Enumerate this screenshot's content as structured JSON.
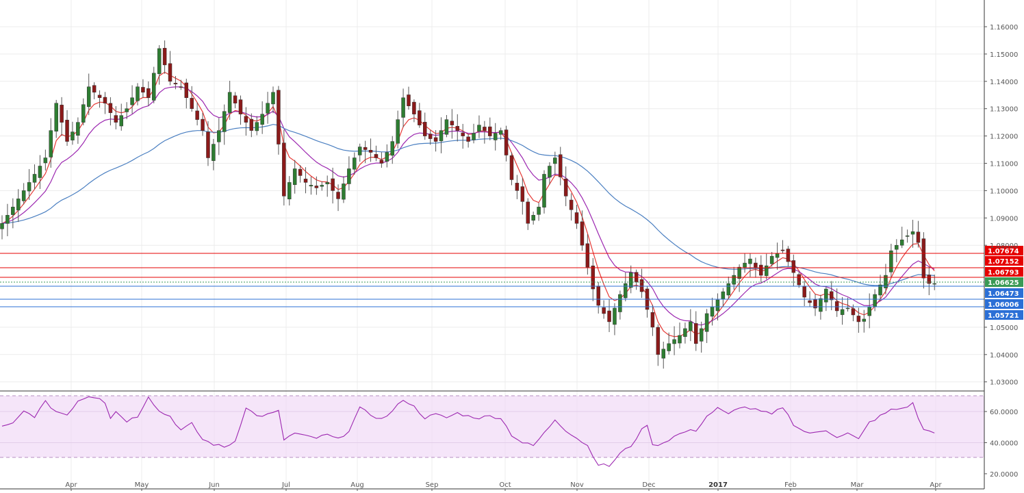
{
  "chart_data": [
    {
      "type": "candlestick",
      "instrument_scale": "price",
      "ylim": [
        1.025,
        1.165
      ],
      "yticks": [
        "1.16000",
        "1.15000",
        "1.14000",
        "1.13000",
        "1.12000",
        "1.11000",
        "1.10000",
        "1.09000",
        "1.08000",
        "1.05000",
        "1.04000",
        "1.03000"
      ],
      "xticks": [
        {
          "label": "Apr",
          "bold": false
        },
        {
          "label": "May",
          "bold": false
        },
        {
          "label": "Jun",
          "bold": false
        },
        {
          "label": "Jul",
          "bold": false
        },
        {
          "label": "Aug",
          "bold": false
        },
        {
          "label": "Sep",
          "bold": false
        },
        {
          "label": "Oct",
          "bold": false
        },
        {
          "label": "Nov",
          "bold": false
        },
        {
          "label": "Dec",
          "bold": false
        },
        {
          "label": "2017",
          "bold": true
        },
        {
          "label": "Feb",
          "bold": false
        },
        {
          "label": "Mar",
          "bold": false
        },
        {
          "label": "Apr",
          "bold": false
        }
      ],
      "grid": true,
      "close_path": [
        [
          0,
          1.088
        ],
        [
          4,
          1.1
        ],
        [
          8,
          1.112
        ],
        [
          10,
          1.132
        ],
        [
          12,
          1.118
        ],
        [
          14,
          1.125
        ],
        [
          16,
          1.138
        ],
        [
          19,
          1.132
        ],
        [
          21,
          1.125
        ],
        [
          23,
          1.13
        ],
        [
          25,
          1.138
        ],
        [
          27,
          1.134
        ],
        [
          29,
          1.152
        ],
        [
          31,
          1.14
        ],
        [
          33,
          1.138
        ],
        [
          35,
          1.13
        ],
        [
          37,
          1.122
        ],
        [
          38,
          1.112
        ],
        [
          40,
          1.122
        ],
        [
          42,
          1.136
        ],
        [
          44,
          1.128
        ],
        [
          46,
          1.122
        ],
        [
          48,
          1.128
        ],
        [
          50,
          1.136
        ],
        [
          52,
          1.098
        ],
        [
          54,
          1.108
        ],
        [
          56,
          1.103
        ],
        [
          58,
          1.101
        ],
        [
          60,
          1.103
        ],
        [
          62,
          1.097
        ],
        [
          64,
          1.108
        ],
        [
          66,
          1.116
        ],
        [
          68,
          1.114
        ],
        [
          70,
          1.11
        ],
        [
          72,
          1.118
        ],
        [
          74,
          1.134
        ],
        [
          76,
          1.128
        ],
        [
          78,
          1.12
        ],
        [
          80,
          1.118
        ],
        [
          82,
          1.126
        ],
        [
          84,
          1.122
        ],
        [
          86,
          1.118
        ],
        [
          88,
          1.124
        ],
        [
          90,
          1.12
        ],
        [
          92,
          1.122
        ],
        [
          94,
          1.104
        ],
        [
          96,
          1.096
        ],
        [
          97,
          1.088
        ],
        [
          99,
          1.094
        ],
        [
          100,
          1.106
        ],
        [
          102,
          1.112
        ],
        [
          104,
          1.098
        ],
        [
          106,
          1.088
        ],
        [
          108,
          1.072
        ],
        [
          109,
          1.064
        ],
        [
          110,
          1.058
        ],
        [
          112,
          1.052
        ],
        [
          114,
          1.062
        ],
        [
          116,
          1.07
        ],
        [
          118,
          1.063
        ],
        [
          120,
          1.05
        ],
        [
          121,
          1.04
        ],
        [
          123,
          1.044
        ],
        [
          125,
          1.047
        ],
        [
          127,
          1.052
        ],
        [
          128,
          1.044
        ],
        [
          130,
          1.055
        ],
        [
          132,
          1.06
        ],
        [
          134,
          1.066
        ],
        [
          136,
          1.072
        ],
        [
          138,
          1.075
        ],
        [
          140,
          1.069
        ],
        [
          142,
          1.076
        ],
        [
          144,
          1.078
        ],
        [
          146,
          1.07
        ],
        [
          148,
          1.061
        ],
        [
          150,
          1.057
        ],
        [
          152,
          1.064
        ],
        [
          154,
          1.056
        ],
        [
          156,
          1.057
        ],
        [
          158,
          1.052
        ],
        [
          159,
          1.053
        ],
        [
          161,
          1.062
        ],
        [
          163,
          1.069
        ],
        [
          164,
          1.078
        ],
        [
          166,
          1.082
        ],
        [
          168,
          1.085
        ],
        [
          169,
          1.081
        ],
        [
          170,
          1.068
        ],
        [
          171,
          1.066
        ],
        [
          172,
          1.066
        ]
      ],
      "close_series_color_up": "#2e7d32",
      "close_series_color_down": "#8b1a1a",
      "moving_averages": [
        {
          "color": "#e53935",
          "period": "short"
        },
        {
          "color": "#9c27b0",
          "period": "medium"
        },
        {
          "color": "#4a7fc1",
          "period": "long"
        }
      ],
      "levels": [
        {
          "value": "1.07674",
          "color": "#e60000",
          "role": "resistance"
        },
        {
          "value": "1.07152",
          "color": "#e60000",
          "role": "resistance"
        },
        {
          "value": "1.06793",
          "color": "#e60000",
          "role": "resistance"
        },
        {
          "value": "1.06625",
          "color": "#3a9a55",
          "role": "current"
        },
        {
          "value": "1.06473",
          "color": "#2b6fd6",
          "role": "support"
        },
        {
          "value": "1.06006",
          "color": "#2b6fd6",
          "role": "support"
        },
        {
          "value": "1.05721",
          "color": "#2b6fd6",
          "role": "support"
        }
      ]
    },
    {
      "type": "line",
      "indicator": "RSI",
      "ylim": [
        18,
        72
      ],
      "yticks": [
        "60.0000",
        "40.0000",
        "20.0000"
      ],
      "band": [
        30,
        70
      ],
      "line_color": "#9c27b0",
      "band_color": "#f1dcf7",
      "values_path": [
        [
          0,
          50
        ],
        [
          2,
          52
        ],
        [
          4,
          60
        ],
        [
          6,
          57
        ],
        [
          8,
          66
        ],
        [
          10,
          60
        ],
        [
          12,
          58
        ],
        [
          14,
          67
        ],
        [
          16,
          70
        ],
        [
          18,
          69
        ],
        [
          19,
          66
        ],
        [
          20,
          56
        ],
        [
          21,
          60
        ],
        [
          23,
          54
        ],
        [
          25,
          57
        ],
        [
          27,
          70
        ],
        [
          29,
          60
        ],
        [
          31,
          57
        ],
        [
          33,
          48
        ],
        [
          35,
          52
        ],
        [
          37,
          42
        ],
        [
          39,
          39
        ],
        [
          41,
          37
        ],
        [
          43,
          41
        ],
        [
          45,
          63
        ],
        [
          47,
          57
        ],
        [
          49,
          58
        ],
        [
          51,
          60
        ],
        [
          52,
          42
        ],
        [
          54,
          46
        ],
        [
          56,
          44
        ],
        [
          58,
          43
        ],
        [
          60,
          45
        ],
        [
          62,
          42
        ],
        [
          64,
          48
        ],
        [
          66,
          62
        ],
        [
          68,
          58
        ],
        [
          70,
          55
        ],
        [
          72,
          60
        ],
        [
          74,
          68
        ],
        [
          76,
          63
        ],
        [
          78,
          56
        ],
        [
          80,
          58
        ],
        [
          82,
          56
        ],
        [
          84,
          59
        ],
        [
          86,
          57
        ],
        [
          88,
          56
        ],
        [
          90,
          57
        ],
        [
          92,
          56
        ],
        [
          94,
          45
        ],
        [
          96,
          40
        ],
        [
          98,
          38
        ],
        [
          100,
          46
        ],
        [
          102,
          55
        ],
        [
          104,
          48
        ],
        [
          106,
          43
        ],
        [
          108,
          38
        ],
        [
          110,
          26
        ],
        [
          112,
          25
        ],
        [
          114,
          33
        ],
        [
          116,
          38
        ],
        [
          118,
          48
        ],
        [
          119,
          52
        ],
        [
          120,
          38
        ],
        [
          122,
          40
        ],
        [
          124,
          44
        ],
        [
          126,
          47
        ],
        [
          128,
          48
        ],
        [
          130,
          57
        ],
        [
          132,
          62
        ],
        [
          134,
          58
        ],
        [
          136,
          63
        ],
        [
          138,
          62
        ],
        [
          140,
          60
        ],
        [
          142,
          58
        ],
        [
          144,
          63
        ],
        [
          146,
          52
        ],
        [
          148,
          47
        ],
        [
          150,
          46
        ],
        [
          152,
          48
        ],
        [
          154,
          44
        ],
        [
          156,
          46
        ],
        [
          158,
          42
        ],
        [
          160,
          53
        ],
        [
          162,
          57
        ],
        [
          164,
          61
        ],
        [
          166,
          62
        ],
        [
          168,
          65
        ],
        [
          169,
          56
        ],
        [
          170,
          48
        ],
        [
          172,
          47
        ]
      ]
    }
  ]
}
